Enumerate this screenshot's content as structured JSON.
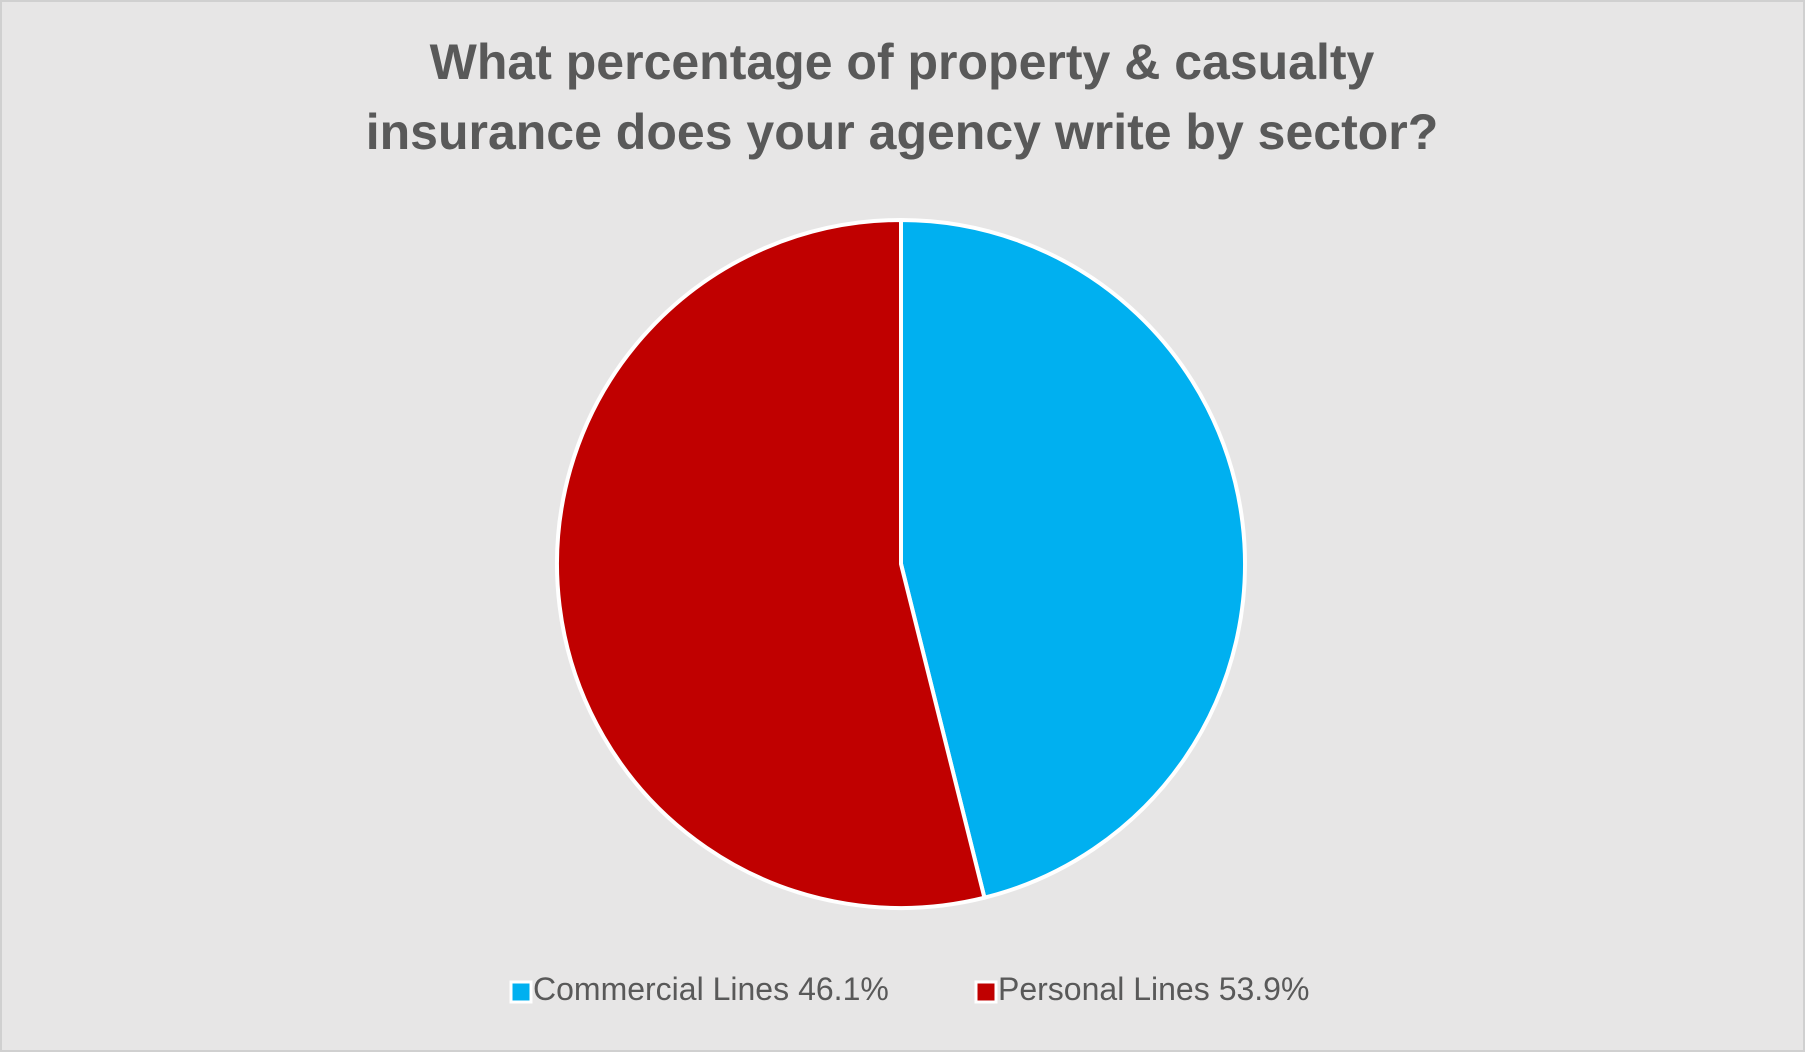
{
  "chart_data": {
    "type": "pie",
    "title": [
      "What percentage of property & casualty",
      "insurance does your agency write by sector?"
    ],
    "categories": [
      "Commercial Lines",
      "Personal Lines"
    ],
    "values": [
      46.1,
      53.9
    ],
    "value_labels": [
      "46.1%",
      "53.9%"
    ],
    "colors": [
      "#00b0f0",
      "#c00000"
    ],
    "legend": "bottom"
  }
}
